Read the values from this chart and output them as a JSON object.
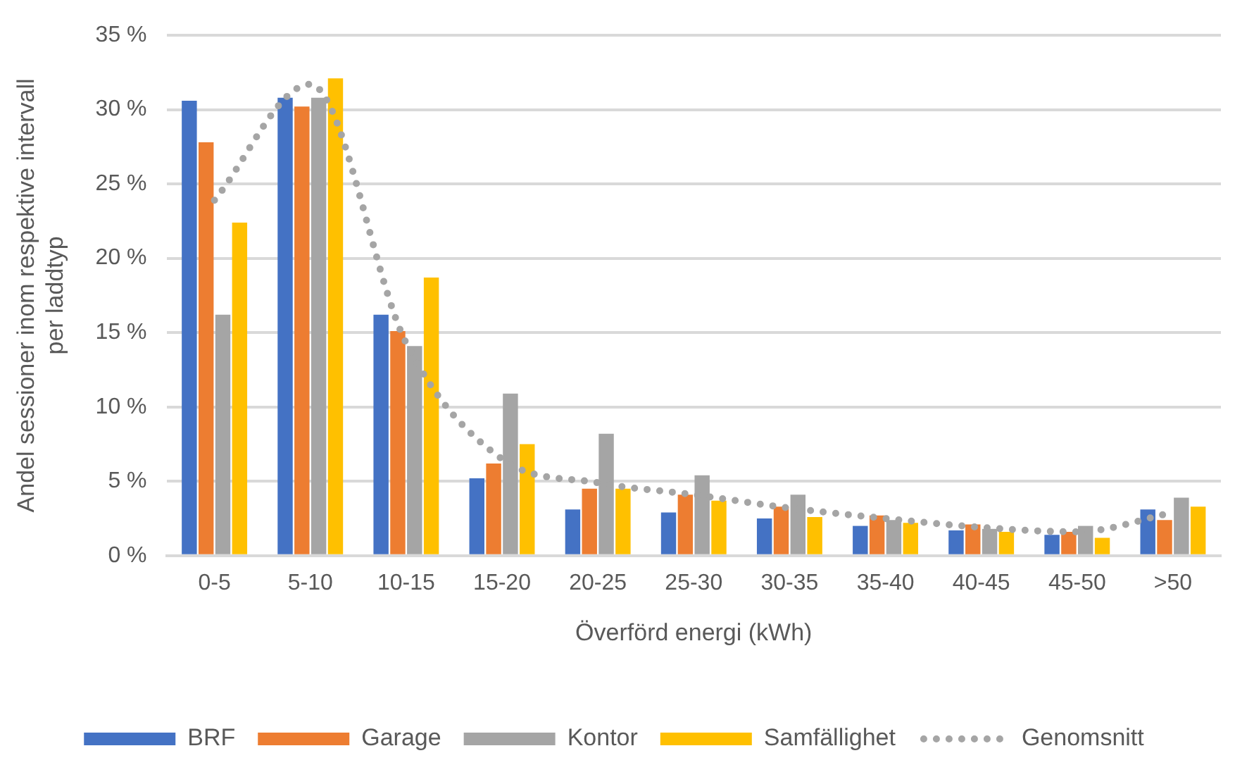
{
  "chart_data": {
    "type": "bar",
    "xlabel": "Överförd energi (kWh)",
    "ylabel": "Andel sessioner inom respektive intervall per laddtyp",
    "categories": [
      "0-5",
      "5-10",
      "10-15",
      "15-20",
      "20-25",
      "25-30",
      "30-35",
      "35-40",
      "40-45",
      "45-50",
      ">50"
    ],
    "series": [
      {
        "name": "BRF",
        "color": "#4472c4",
        "values": [
          30.6,
          30.8,
          16.2,
          5.2,
          3.1,
          2.9,
          2.5,
          2.0,
          1.7,
          1.4,
          3.1
        ]
      },
      {
        "name": "Garage",
        "color": "#ed7d31",
        "values": [
          27.8,
          30.2,
          15.1,
          6.2,
          4.5,
          4.1,
          3.3,
          2.7,
          2.1,
          1.6,
          2.4
        ]
      },
      {
        "name": "Kontor",
        "color": "#a5a5a5",
        "values": [
          16.2,
          30.8,
          14.1,
          10.9,
          8.2,
          5.4,
          4.1,
          2.4,
          1.8,
          2.0,
          3.9
        ]
      },
      {
        "name": "Samfällighet",
        "color": "#ffc000",
        "values": [
          22.4,
          32.1,
          18.7,
          7.5,
          4.5,
          3.7,
          2.6,
          2.2,
          1.6,
          1.2,
          3.3
        ]
      },
      {
        "name": "Genomsnitt",
        "type": "line",
        "color": "#a5a5a5",
        "line_style": "dotted",
        "marker": "none",
        "values": [
          23.9,
          31.7,
          14.3,
          6.5,
          4.9,
          4.1,
          3.2,
          2.5,
          1.9,
          1.6,
          2.9
        ]
      }
    ],
    "ylim": [
      0,
      35
    ],
    "yticks": [
      {
        "value": 0,
        "label": "0 %"
      },
      {
        "value": 5,
        "label": "5 %"
      },
      {
        "value": 10,
        "label": "10 %"
      },
      {
        "value": 15,
        "label": "15 %"
      },
      {
        "value": 20,
        "label": "20 %"
      },
      {
        "value": 25,
        "label": "25 %"
      },
      {
        "value": 30,
        "label": "30 %"
      },
      {
        "value": 35,
        "label": "35 %"
      }
    ],
    "grid": "y",
    "legend": "bottom"
  }
}
